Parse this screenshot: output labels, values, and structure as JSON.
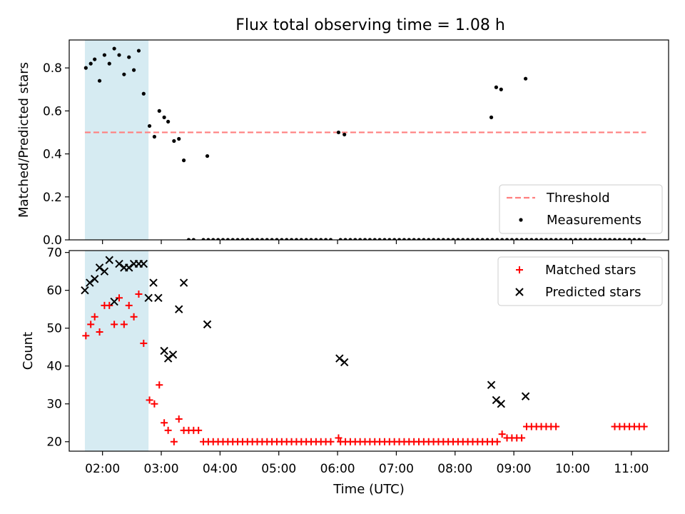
{
  "title": "Flux total observing time = 1.08 h",
  "chart_data": [
    {
      "type": "scatter",
      "title": "Flux total observing time = 1.08 h",
      "xlabel": "",
      "ylabel": "Matched/Predicted stars",
      "xlim": [
        "01:26",
        "11:38"
      ],
      "ylim": [
        0,
        0.93
      ],
      "x_tick_labels": [
        "02:00",
        "03:00",
        "04:00",
        "05:00",
        "06:00",
        "07:00",
        "08:00",
        "09:00",
        "10:00",
        "11:00"
      ],
      "y_tick_labels": [
        "0.0",
        "0.2",
        "0.4",
        "0.6",
        "0.8"
      ],
      "y_ticks": [
        0,
        0.2,
        0.4,
        0.6,
        0.8
      ],
      "shaded_span": [
        "01:42",
        "02:47"
      ],
      "shaded_color": "#add8e6",
      "threshold": {
        "name": "Threshold",
        "value": 0.5,
        "x_range": [
          "01:42",
          "11:15"
        ],
        "color": "#ff7f7f"
      },
      "series": [
        {
          "name": "Measurements",
          "color": "#000000",
          "x": [
            "01:43",
            "01:48",
            "01:52",
            "01:57",
            "02:02",
            "02:07",
            "02:12",
            "02:17",
            "02:22",
            "02:27",
            "02:32",
            "02:37",
            "02:42",
            "02:48",
            "02:53",
            "02:58",
            "03:03",
            "03:07",
            "03:13",
            "03:18",
            "03:23",
            "03:28",
            "03:33",
            "03:43",
            "03:48",
            "03:53",
            "03:58",
            "04:03",
            "04:08",
            "04:13",
            "04:18",
            "04:23",
            "04:28",
            "04:33",
            "04:38",
            "04:43",
            "04:48",
            "04:53",
            "04:58",
            "05:03",
            "05:08",
            "05:13",
            "05:18",
            "05:23",
            "05:28",
            "05:33",
            "05:38",
            "05:43",
            "05:48",
            "05:53",
            "06:03",
            "06:08",
            "06:13",
            "06:18",
            "06:23",
            "06:28",
            "06:33",
            "06:38",
            "06:43",
            "06:48",
            "06:53",
            "06:58",
            "07:03",
            "07:08",
            "07:13",
            "07:18",
            "07:23",
            "07:28",
            "07:33",
            "07:38",
            "07:43",
            "07:48",
            "07:53",
            "07:58",
            "08:03",
            "08:08",
            "08:13",
            "08:18",
            "08:23",
            "08:28",
            "08:33",
            "08:38",
            "08:43",
            "08:48",
            "08:53",
            "08:58",
            "09:03",
            "09:08",
            "09:13",
            "09:18",
            "09:23",
            "09:28",
            "09:33",
            "09:38",
            "09:43",
            "09:48",
            "09:53",
            "09:58",
            "10:03",
            "10:08",
            "10:13",
            "10:18",
            "10:23",
            "10:28",
            "10:33",
            "10:38",
            "10:43",
            "10:48",
            "10:53",
            "10:58",
            "11:03",
            "11:08",
            "11:13",
            "03:47",
            "06:01",
            "06:07",
            "08:37",
            "08:42",
            "08:47",
            "09:12"
          ],
          "y": [
            0.8,
            0.82,
            0.84,
            0.74,
            0.86,
            0.82,
            0.89,
            0.86,
            0.77,
            0.85,
            0.79,
            0.88,
            0.68,
            0.53,
            0.48,
            0.6,
            0.57,
            0.55,
            0.46,
            0.47,
            0.37,
            0.0,
            0.0,
            0.0,
            0.0,
            0.0,
            0.0,
            0.0,
            0.0,
            0.0,
            0.0,
            0.0,
            0.0,
            0.0,
            0.0,
            0.0,
            0.0,
            0.0,
            0.0,
            0.0,
            0.0,
            0.0,
            0.0,
            0.0,
            0.0,
            0.0,
            0.0,
            0.0,
            0.0,
            0.0,
            0.0,
            0.0,
            0.0,
            0.0,
            0.0,
            0.0,
            0.0,
            0.0,
            0.0,
            0.0,
            0.0,
            0.0,
            0.0,
            0.0,
            0.0,
            0.0,
            0.0,
            0.0,
            0.0,
            0.0,
            0.0,
            0.0,
            0.0,
            0.0,
            0.0,
            0.0,
            0.0,
            0.0,
            0.0,
            0.0,
            0.0,
            0.0,
            0.0,
            0.0,
            0.0,
            0.0,
            0.0,
            0.0,
            0.0,
            0.0,
            0.0,
            0.0,
            0.0,
            0.0,
            0.0,
            0.0,
            0.0,
            0.0,
            0.0,
            0.0,
            0.0,
            0.0,
            0.0,
            0.0,
            0.0,
            0.0,
            0.0,
            0.0,
            0.0,
            0.0,
            0.0,
            0.0,
            0.0,
            0.39,
            0.5,
            0.49,
            0.57,
            0.71,
            0.7,
            0.75
          ]
        }
      ],
      "legend": {
        "position": "lower-right",
        "entries": [
          "Threshold",
          "Measurements"
        ]
      },
      "grid": false
    },
    {
      "type": "scatter",
      "title": "",
      "xlabel": "Time (UTC)",
      "ylabel": "Count",
      "xlim": [
        "01:26",
        "11:38"
      ],
      "ylim": [
        17.5,
        70.5
      ],
      "x_tick_labels": [
        "02:00",
        "03:00",
        "04:00",
        "05:00",
        "06:00",
        "07:00",
        "08:00",
        "09:00",
        "10:00",
        "11:00"
      ],
      "y_tick_labels": [
        "20",
        "30",
        "40",
        "50",
        "60",
        "70"
      ],
      "y_ticks": [
        20,
        30,
        40,
        50,
        60,
        70
      ],
      "shaded_span": [
        "01:42",
        "02:47"
      ],
      "shaded_color": "#add8e6",
      "series": [
        {
          "name": "Matched stars",
          "marker": "+",
          "color": "#ff0000",
          "x": [
            "01:43",
            "01:48",
            "01:52",
            "01:57",
            "02:02",
            "02:07",
            "02:12",
            "02:17",
            "02:22",
            "02:27",
            "02:32",
            "02:37",
            "02:42",
            "02:48",
            "02:53",
            "02:58",
            "03:03",
            "03:07",
            "03:13",
            "03:18",
            "03:23",
            "03:28",
            "03:33",
            "03:38",
            "03:43",
            "03:48",
            "03:53",
            "03:58",
            "04:03",
            "04:08",
            "04:13",
            "04:18",
            "04:23",
            "04:28",
            "04:33",
            "04:38",
            "04:43",
            "04:48",
            "04:53",
            "04:58",
            "05:03",
            "05:08",
            "05:13",
            "05:18",
            "05:23",
            "05:28",
            "05:33",
            "05:38",
            "05:43",
            "05:48",
            "05:53",
            "06:03",
            "06:08",
            "06:13",
            "06:18",
            "06:23",
            "06:28",
            "06:33",
            "06:38",
            "06:43",
            "06:48",
            "06:53",
            "06:58",
            "07:03",
            "07:08",
            "07:13",
            "07:18",
            "07:23",
            "07:28",
            "07:33",
            "07:38",
            "07:43",
            "07:48",
            "07:53",
            "07:58",
            "08:03",
            "08:08",
            "08:13",
            "08:18",
            "08:23",
            "08:28",
            "08:33",
            "08:38",
            "08:43",
            "08:48",
            "08:53",
            "08:58",
            "09:03",
            "09:08",
            "09:13",
            "09:18",
            "09:23",
            "09:28",
            "09:33",
            "09:38",
            "09:43",
            "10:43",
            "10:48",
            "10:53",
            "10:58",
            "11:03",
            "11:08",
            "11:13",
            "06:01"
          ],
          "y": [
            48,
            51,
            53,
            49,
            56,
            56,
            51,
            58,
            51,
            56,
            53,
            59,
            46,
            31,
            30,
            35,
            25,
            23,
            20,
            26,
            23,
            23,
            23,
            23,
            20,
            20,
            20,
            20,
            20,
            20,
            20,
            20,
            20,
            20,
            20,
            20,
            20,
            20,
            20,
            20,
            20,
            20,
            20,
            20,
            20,
            20,
            20,
            20,
            20,
            20,
            20,
            20,
            20,
            20,
            20,
            20,
            20,
            20,
            20,
            20,
            20,
            20,
            20,
            20,
            20,
            20,
            20,
            20,
            20,
            20,
            20,
            20,
            20,
            20,
            20,
            20,
            20,
            20,
            20,
            20,
            20,
            20,
            20,
            20,
            22,
            21,
            21,
            21,
            21,
            24,
            24,
            24,
            24,
            24,
            24,
            24,
            24,
            24,
            24,
            24,
            24,
            24,
            24,
            21
          ]
        },
        {
          "name": "Predicted stars",
          "marker": "x",
          "color": "#000000",
          "x": [
            "01:42",
            "01:47",
            "01:52",
            "01:57",
            "02:02",
            "02:07",
            "02:12",
            "02:17",
            "02:22",
            "02:27",
            "02:32",
            "02:37",
            "02:42",
            "02:47",
            "02:52",
            "02:57",
            "03:03",
            "03:07",
            "03:12",
            "03:18",
            "03:23",
            "03:47",
            "06:02",
            "06:07",
            "08:37",
            "08:42",
            "08:47",
            "09:12"
          ],
          "y": [
            60,
            62,
            63,
            66,
            65,
            68,
            57,
            67,
            66,
            66,
            67,
            67,
            67,
            58,
            62,
            58,
            44,
            42,
            43,
            55,
            62,
            51,
            42,
            41,
            35,
            31,
            30,
            32
          ]
        }
      ],
      "legend": {
        "position": "top-right",
        "entries": [
          "Matched stars",
          "Predicted stars"
        ]
      },
      "grid": false
    }
  ]
}
